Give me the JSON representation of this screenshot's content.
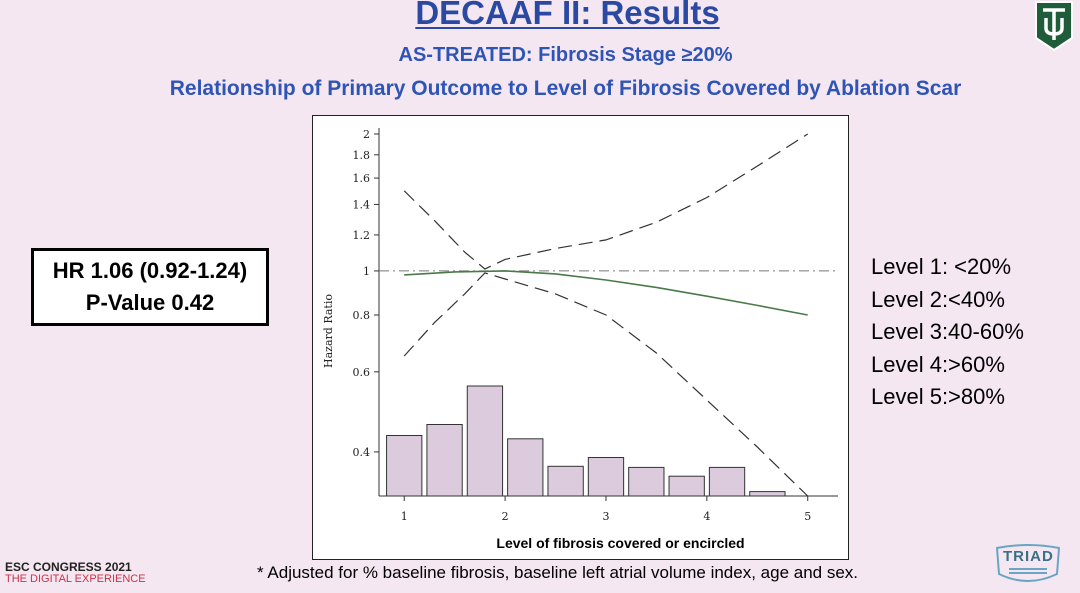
{
  "slide": {
    "title": "DECAAF II: Results",
    "subtitle": "AS-TREATED: Fibrosis Stage ≥20%",
    "subtitle2": "Relationship of Primary Outcome to Level of Fibrosis Covered by Ablation Scar",
    "hr_line1": "HR 1.06 (0.92-1.24)",
    "hr_line2": "P-Value 0.42",
    "levels": [
      "Level 1: <20%",
      "Level 2:<40%",
      "Level 3:40-60%",
      "Level 4:>60%",
      "Level 5:>80%"
    ],
    "footnote": "*  Adjusted for % baseline fibrosis, baseline left atrial volume index, age and sex.",
    "esc_line1": "ESC CONGRESS 2021",
    "esc_line2": "THE DIGITAL EXPERIENCE",
    "triad_logo_text": "TRIAD",
    "colors": {
      "title": "#2a49a3",
      "subtitle": "#2e55b6",
      "hr_curve": "#4a7a4a",
      "bars": "#dccbdd",
      "tulane_green": "#1e5c3a"
    }
  },
  "chart_data": {
    "type": "line",
    "xlabel": "Level of fibrosis covered or encircled",
    "ylabel": "Hazard Ratio",
    "xlim": [
      0.75,
      5.3
    ],
    "ylim": [
      0.32,
      2.0
    ],
    "y_scale": "log",
    "xticks": [
      1,
      2,
      3,
      4,
      5
    ],
    "yticks": [
      0.4,
      0.6,
      0.8,
      1,
      1.2,
      1.4,
      1.6,
      1.8,
      2
    ],
    "ytick_labels": [
      "0.4",
      "0.6",
      "0.8",
      "1",
      "1.2",
      "1.4",
      "1.6",
      "1.8",
      "2"
    ],
    "reference_line": 1,
    "grid": false,
    "series": [
      {
        "role": "estimate",
        "x": [
          1,
          1.5,
          2,
          2.5,
          3,
          3.5,
          4,
          4.5,
          5
        ],
        "y": [
          0.98,
          0.995,
          1.0,
          0.985,
          0.955,
          0.92,
          0.88,
          0.84,
          0.8
        ]
      },
      {
        "role": "upper-ci",
        "x": [
          1,
          1.3,
          1.6,
          1.8,
          2,
          2.5,
          3,
          3.5,
          4,
          4.5,
          5
        ],
        "y": [
          1.5,
          1.29,
          1.1,
          1.01,
          1.06,
          1.12,
          1.17,
          1.28,
          1.45,
          1.7,
          2.0
        ]
      },
      {
        "role": "lower-ci",
        "x": [
          1,
          1.3,
          1.6,
          1.8,
          2,
          2.5,
          3,
          3.5,
          4,
          4.5,
          5
        ],
        "y": [
          0.65,
          0.77,
          0.89,
          0.99,
          0.96,
          0.89,
          0.8,
          0.66,
          0.52,
          0.41,
          0.32
        ]
      }
    ],
    "histogram": {
      "x_centers": [
        1,
        1.4,
        1.8,
        2.2,
        2.6,
        3.0,
        3.4,
        3.8,
        4.2,
        4.6
      ],
      "bar_width": 0.35,
      "relative_heights": [
        0.55,
        0.65,
        1.0,
        0.52,
        0.27,
        0.35,
        0.26,
        0.18,
        0.26,
        0.04
      ]
    }
  }
}
